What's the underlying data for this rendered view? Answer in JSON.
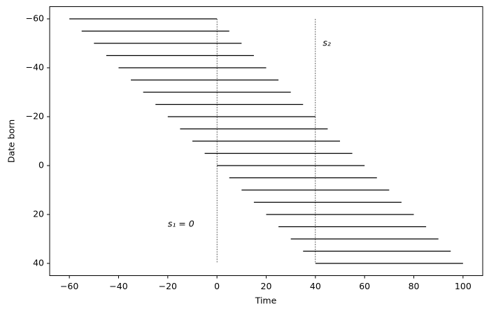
{
  "chart_data": {
    "type": "segments",
    "xlabel": "Time",
    "ylabel": "Date born",
    "segments": {
      "y": [
        -60,
        -55,
        -50,
        -45,
        -40,
        -35,
        -30,
        -25,
        -20,
        -15,
        -10,
        -5,
        0,
        5,
        10,
        15,
        20,
        25,
        30,
        35,
        40
      ],
      "start": [
        -60,
        -55,
        -50,
        -45,
        -40,
        -35,
        -30,
        -25,
        -20,
        -15,
        -10,
        -5,
        0,
        5,
        10,
        15,
        20,
        25,
        30,
        35,
        40
      ],
      "end": [
        0,
        5,
        10,
        15,
        20,
        25,
        30,
        35,
        40,
        45,
        50,
        55,
        60,
        65,
        70,
        75,
        80,
        85,
        90,
        95,
        100
      ],
      "color": "#000000"
    },
    "vlines": [
      {
        "x": 0,
        "y": [
          -60,
          40
        ]
      },
      {
        "x": 40,
        "y": [
          -60,
          40
        ]
      }
    ],
    "annotations": [
      {
        "text": "s₁ = 0",
        "x": -20,
        "y": 24
      },
      {
        "text": "s₂",
        "x": 43,
        "y": -50
      }
    ],
    "xlim": [
      -68,
      108
    ],
    "xticks": [
      {
        "value": -60,
        "label": "−60"
      },
      {
        "value": -40,
        "label": "−40"
      },
      {
        "value": -20,
        "label": "−20"
      },
      0,
      20,
      40,
      60,
      80,
      100
    ],
    "ylim": [
      45,
      -65
    ],
    "yticks": [
      {
        "value": -60,
        "label": "−60"
      },
      {
        "value": -40,
        "label": "−40"
      },
      {
        "value": -20,
        "label": "−20"
      },
      0,
      20,
      40
    ]
  }
}
